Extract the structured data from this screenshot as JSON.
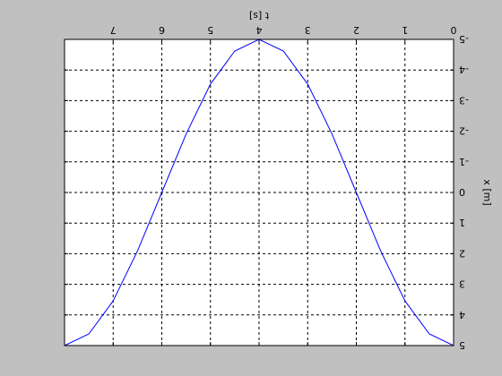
{
  "colors": {
    "figure_background": "#c0c0c0",
    "axes_background": "#ffffff",
    "line": "#0000ff",
    "grid": "#000000",
    "text": "#000000"
  },
  "chart_data": {
    "type": "line",
    "orientation_note": "figure is rendered mirrored (rotated 180 degrees)",
    "title": "",
    "xlabel": "t [s]",
    "ylabel": "x [m]",
    "xlim": [
      0,
      8
    ],
    "ylim": [
      -5,
      5
    ],
    "grid": true,
    "x_ticks": [
      0,
      1,
      2,
      3,
      4,
      5,
      6,
      7,
      8
    ],
    "x_tick_labels": [
      "0",
      "1",
      "2",
      "3",
      "4",
      "5",
      "6",
      "7",
      ""
    ],
    "y_ticks": [
      -5,
      -4,
      -3,
      -2,
      -1,
      0,
      1,
      2,
      3,
      4,
      5
    ],
    "y_tick_labels": [
      "-5",
      "-4",
      "-3",
      "-2",
      "-1",
      "0",
      "1",
      "2",
      "3",
      "4",
      "5"
    ],
    "series": [
      {
        "name": "",
        "x": [
          0,
          0.5,
          1,
          1.5,
          2,
          2.5,
          3,
          3.5,
          4,
          4.5,
          5,
          5.5,
          6,
          6.5,
          7,
          7.5,
          8
        ],
        "y": [
          5,
          4.62,
          3.54,
          1.91,
          0,
          -1.91,
          -3.54,
          -4.62,
          -5,
          -4.62,
          -3.54,
          -1.91,
          0,
          1.91,
          3.54,
          4.62,
          5
        ]
      }
    ]
  }
}
